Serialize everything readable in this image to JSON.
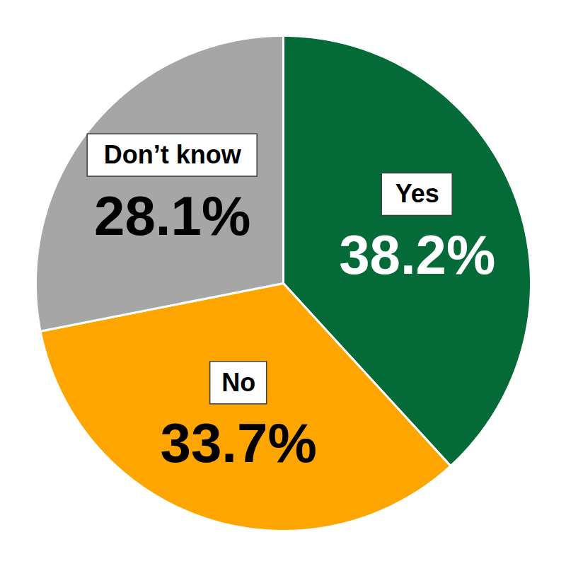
{
  "chart_data": {
    "type": "pie",
    "categories": [
      "Yes",
      "No",
      "Don’t know"
    ],
    "values": [
      38.2,
      33.7,
      28.1
    ],
    "value_labels": [
      "38.2%",
      "33.7%",
      "28.1%"
    ],
    "colors": [
      "#046A38",
      "#FFA500",
      "#A6A6A6"
    ],
    "data_labels": true
  }
}
